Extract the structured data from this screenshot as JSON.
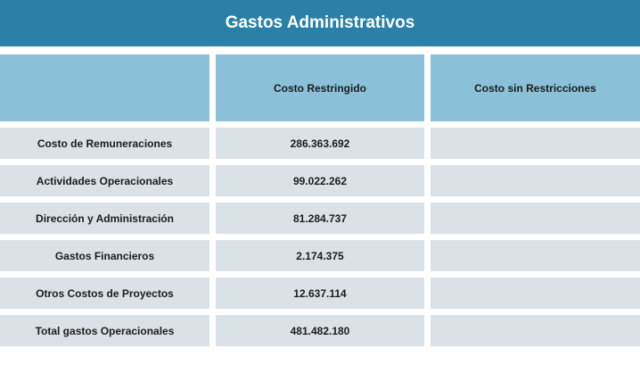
{
  "title": "Gastos Administrativos",
  "columns": [
    "",
    "Costo Restringido",
    "Costo sin Restricciones"
  ],
  "rows": [
    {
      "label": "Costo de Remuneraciones",
      "restricted": "286.363.692",
      "unrestricted": ""
    },
    {
      "label": "Actividades Operacionales",
      "restricted": "99.022.262",
      "unrestricted": ""
    },
    {
      "label": "Dirección y Administración",
      "restricted": "81.284.737",
      "unrestricted": ""
    },
    {
      "label": "Gastos Financieros",
      "restricted": "2.174.375",
      "unrestricted": ""
    },
    {
      "label": "Otros Costos de Proyectos",
      "restricted": "12.637.114",
      "unrestricted": ""
    },
    {
      "label": "Total gastos Operacionales",
      "restricted": "481.482.180",
      "unrestricted": ""
    }
  ]
}
